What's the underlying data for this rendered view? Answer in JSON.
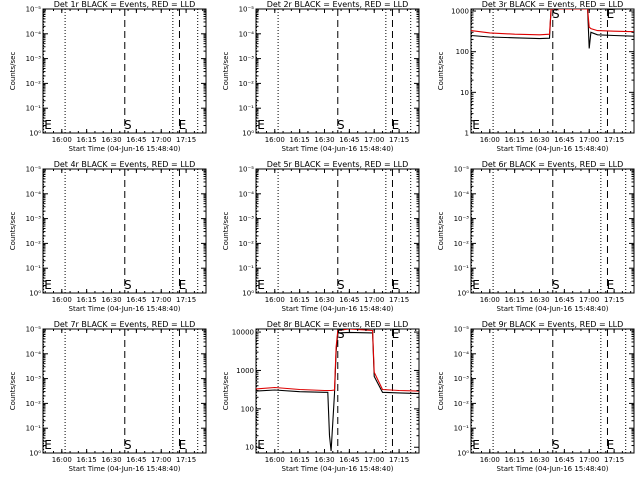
{
  "window_title": "",
  "chart_data": [
    {
      "type": "line",
      "title": "Det 1r BLACK = Events, RED = LLD",
      "xlabel": "Start Time (04-Jun-16 15:48:40)",
      "ylabel": "Counts/sec",
      "x_ticks": [
        "16:00",
        "16:15",
        "16:30",
        "16:45",
        "17:00",
        "17:15"
      ],
      "y_ticks": [
        "10⁰",
        "10⁻¹",
        "10⁻²",
        "10⁻³",
        "10⁻⁴",
        "10⁻⁵"
      ],
      "xlim": [
        "15:48:40",
        "17:27:00"
      ],
      "ylog": true,
      "markers": [
        {
          "label": "S",
          "time": "16:38"
        },
        {
          "label": "E",
          "time": "17:11"
        }
      ],
      "dotted_lines": [
        "15:49",
        "16:02",
        "17:07",
        "17:22"
      ],
      "series": []
    },
    {
      "type": "line",
      "title": "Det 2r BLACK = Events, RED = LLD",
      "xlabel": "Start Time (04-Jun-16 15:48:40)",
      "ylabel": "Counts/sec",
      "x_ticks": [
        "16:00",
        "16:15",
        "16:30",
        "16:45",
        "17:00",
        "17:15"
      ],
      "y_ticks": [
        "10⁰",
        "10⁻¹",
        "10⁻²",
        "10⁻³",
        "10⁻⁴",
        "10⁻⁵"
      ],
      "xlim": [
        "15:48:40",
        "17:27:00"
      ],
      "ylog": true,
      "markers": [
        {
          "label": "S",
          "time": "16:38"
        },
        {
          "label": "E",
          "time": "17:11"
        }
      ],
      "dotted_lines": [
        "15:49",
        "16:02",
        "17:07",
        "17:22"
      ],
      "series": []
    },
    {
      "type": "line",
      "title": "Det 3r BLACK = Events, RED = LLD",
      "xlabel": "Start Time (04-Jun-16 15:48:40)",
      "ylabel": "Counts/sec",
      "x_ticks": [
        "16:00",
        "16:15",
        "16:30",
        "16:45",
        "17:00",
        "17:15"
      ],
      "y_ticks": [
        "1",
        "10",
        "100",
        "1000"
      ],
      "xlim": [
        "15:48:40",
        "17:27:00"
      ],
      "ylog": true,
      "markers": [
        {
          "label": "S",
          "time": "16:38"
        },
        {
          "label": "E",
          "time": "17:11"
        }
      ],
      "dotted_lines": [
        "15:49",
        "16:02",
        "17:07",
        "17:22"
      ],
      "series": [
        {
          "color": "#000000",
          "x": [
            "15:48:40",
            "16:00",
            "16:15",
            "16:30",
            "16:36",
            "16:37",
            "16:38",
            "16:45",
            "16:57",
            "16:59",
            "17:00",
            "17:01",
            "17:05",
            "17:15",
            "17:27"
          ],
          "y": [
            250,
            230,
            220,
            210,
            215,
            2000,
            8000,
            9000,
            8000,
            1500,
            120,
            300,
            260,
            250,
            240
          ]
        },
        {
          "color": "#dd0000",
          "x": [
            "15:48:40",
            "16:00",
            "16:15",
            "16:30",
            "16:36",
            "16:37",
            "16:38",
            "16:45",
            "16:57",
            "16:59",
            "17:00",
            "17:01",
            "17:05",
            "17:15",
            "17:27"
          ],
          "y": [
            330,
            290,
            270,
            260,
            270,
            2500,
            9000,
            10000,
            9000,
            2000,
            400,
            370,
            330,
            320,
            310
          ]
        }
      ]
    },
    {
      "type": "line",
      "title": "Det 4r BLACK = Events, RED = LLD",
      "xlabel": "Start Time (04-Jun-16 15:48:40)",
      "ylabel": "Counts/sec",
      "x_ticks": [
        "16:00",
        "16:15",
        "16:30",
        "16:45",
        "17:00",
        "17:15"
      ],
      "y_ticks": [
        "10⁰",
        "10⁻¹",
        "10⁻²",
        "10⁻³",
        "10⁻⁴",
        "10⁻⁵"
      ],
      "xlim": [
        "15:48:40",
        "17:27:00"
      ],
      "ylog": true,
      "markers": [
        {
          "label": "S",
          "time": "16:38"
        },
        {
          "label": "E",
          "time": "17:11"
        }
      ],
      "dotted_lines": [
        "15:49",
        "16:02",
        "17:07",
        "17:22"
      ],
      "series": []
    },
    {
      "type": "line",
      "title": "Det 5r BLACK = Events, RED = LLD",
      "xlabel": "Start Time (04-Jun-16 15:48:40)",
      "ylabel": "Counts/sec",
      "x_ticks": [
        "16:00",
        "16:15",
        "16:30",
        "16:45",
        "17:00",
        "17:15"
      ],
      "y_ticks": [
        "10⁰",
        "10⁻¹",
        "10⁻²",
        "10⁻³",
        "10⁻⁴",
        "10⁻⁵"
      ],
      "xlim": [
        "15:48:40",
        "17:27:00"
      ],
      "ylog": true,
      "markers": [
        {
          "label": "S",
          "time": "16:38"
        },
        {
          "label": "E",
          "time": "17:11"
        }
      ],
      "dotted_lines": [
        "15:49",
        "16:02",
        "17:07",
        "17:22"
      ],
      "series": []
    },
    {
      "type": "line",
      "title": "Det 6r BLACK = Events, RED = LLD",
      "xlabel": "Start Time (04-Jun-16 15:48:40)",
      "ylabel": "Counts/sec",
      "x_ticks": [
        "16:00",
        "16:15",
        "16:30",
        "16:45",
        "17:00",
        "17:15"
      ],
      "y_ticks": [
        "10⁰",
        "10⁻¹",
        "10⁻²",
        "10⁻³",
        "10⁻⁴",
        "10⁻⁵"
      ],
      "xlim": [
        "15:48:40",
        "17:27:00"
      ],
      "ylog": true,
      "markers": [
        {
          "label": "S",
          "time": "16:38"
        },
        {
          "label": "E",
          "time": "17:11"
        }
      ],
      "dotted_lines": [
        "15:49",
        "16:02",
        "17:07",
        "17:22"
      ],
      "series": []
    },
    {
      "type": "line",
      "title": "Det 7r BLACK = Events, RED = LLD",
      "xlabel": "Start Time (04-Jun-16 15:48:40)",
      "ylabel": "Counts/sec",
      "x_ticks": [
        "16:00",
        "16:15",
        "16:30",
        "16:45",
        "17:00",
        "17:15"
      ],
      "y_ticks": [
        "10⁰",
        "10⁻¹",
        "10⁻²",
        "10⁻³",
        "10⁻⁴",
        "10⁻⁵"
      ],
      "xlim": [
        "15:48:40",
        "17:27:00"
      ],
      "ylog": true,
      "markers": [
        {
          "label": "S",
          "time": "16:38"
        },
        {
          "label": "E",
          "time": "17:11"
        }
      ],
      "dotted_lines": [
        "15:49",
        "16:02",
        "17:07",
        "17:22"
      ],
      "series": []
    },
    {
      "type": "line",
      "title": "Det 8r BLACK = Events, RED = LLD",
      "xlabel": "Start Time (04-Jun-16 15:48:40)",
      "ylabel": "Counts/sec",
      "x_ticks": [
        "16:00",
        "16:15",
        "16:30",
        "16:45",
        "17:00",
        "17:15"
      ],
      "y_ticks": [
        "10",
        "100",
        "1000",
        "10000"
      ],
      "xlim": [
        "15:48:40",
        "17:27:00"
      ],
      "ylog": true,
      "markers": [
        {
          "label": "S",
          "time": "16:38"
        },
        {
          "label": "E",
          "time": "17:11"
        }
      ],
      "dotted_lines": [
        "15:49",
        "16:02",
        "17:07",
        "17:22"
      ],
      "series": [
        {
          "color": "#000000",
          "x": [
            "15:48:40",
            "16:00",
            "16:15",
            "16:30",
            "16:32",
            "16:33",
            "16:34",
            "16:36",
            "16:37",
            "16:38",
            "16:45",
            "16:59",
            "17:00",
            "17:05",
            "17:15",
            "17:27"
          ],
          "y": [
            290,
            310,
            280,
            270,
            270,
            20,
            8,
            250,
            3000,
            9500,
            9800,
            9500,
            700,
            270,
            260,
            250
          ]
        },
        {
          "color": "#dd0000",
          "x": [
            "15:48:40",
            "16:00",
            "16:15",
            "16:30",
            "16:34",
            "16:36",
            "16:37",
            "16:38",
            "16:45",
            "16:59",
            "17:00",
            "17:05",
            "17:15",
            "17:27"
          ],
          "y": [
            330,
            360,
            320,
            300,
            300,
            310,
            4000,
            11000,
            12000,
            11000,
            900,
            320,
            300,
            290
          ]
        }
      ]
    },
    {
      "type": "line",
      "title": "Det 9r BLACK = Events, RED = LLD",
      "xlabel": "Start Time (04-Jun-16 15:48:40)",
      "ylabel": "Counts/sec",
      "x_ticks": [
        "16:00",
        "16:15",
        "16:30",
        "16:45",
        "17:00",
        "17:15"
      ],
      "y_ticks": [
        "10⁰",
        "10⁻¹",
        "10⁻²",
        "10⁻³",
        "10⁻⁴",
        "10⁻⁵"
      ],
      "xlim": [
        "15:48:40",
        "17:27:00"
      ],
      "ylog": true,
      "markers": [
        {
          "label": "S",
          "time": "16:38"
        },
        {
          "label": "E",
          "time": "17:11"
        }
      ],
      "dotted_lines": [
        "15:49",
        "16:02",
        "17:07",
        "17:22"
      ],
      "series": []
    }
  ]
}
